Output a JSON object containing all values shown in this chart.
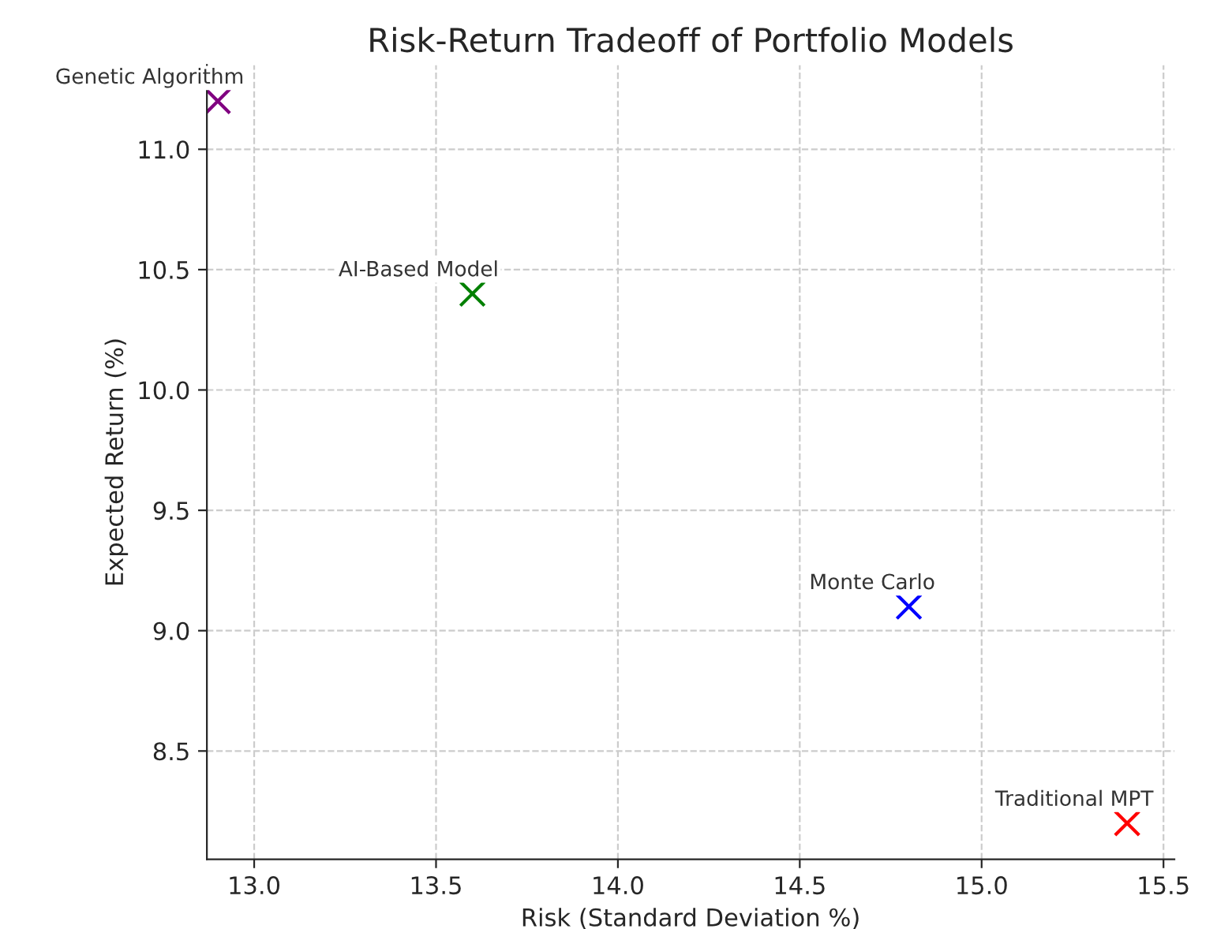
{
  "chart_data": {
    "type": "scatter",
    "title": "Risk-Return Tradeoff of Portfolio Models",
    "xlabel": "Risk (Standard Deviation %)",
    "ylabel": "Expected Return (%)",
    "series": [
      {
        "name": "Genetic Algorithm",
        "color": "#800080",
        "x": [
          12.9
        ],
        "values": [
          11.2
        ]
      },
      {
        "name": "AI-Based Model",
        "color": "#008000",
        "x": [
          13.6
        ],
        "values": [
          10.4
        ]
      },
      {
        "name": "Monte Carlo",
        "color": "#0000ff",
        "x": [
          14.8
        ],
        "values": [
          9.1
        ]
      },
      {
        "name": "Traditional MPT",
        "color": "#ff0000",
        "x": [
          15.4
        ],
        "values": [
          8.2
        ]
      }
    ],
    "xlim": [
      12.87,
      15.53
    ],
    "ylim": [
      8.05,
      11.35
    ],
    "xticks": [
      {
        "value": 13,
        "label": "13.0"
      },
      13.5,
      {
        "value": 14,
        "label": "14.0"
      },
      14.5,
      {
        "value": 15,
        "label": "15.0"
      },
      15.5
    ],
    "yticks": [
      8.5,
      {
        "value": 9,
        "label": "9.0"
      },
      9.5,
      {
        "value": 10,
        "label": "10.0"
      },
      10.5,
      {
        "value": 11,
        "label": "11.0"
      }
    ],
    "grid": true,
    "marker": "cross"
  }
}
